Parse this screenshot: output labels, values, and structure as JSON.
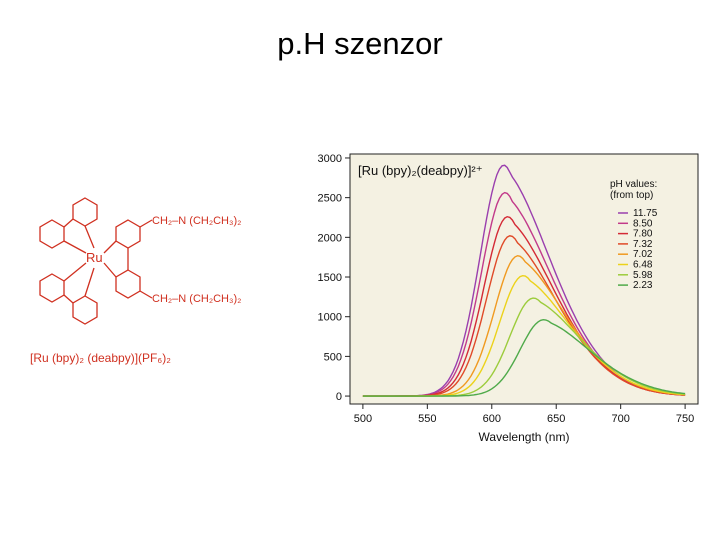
{
  "slide": {
    "title": "p.H szenzor"
  },
  "structure": {
    "central_atom": "Ru",
    "n_label": "N",
    "amine_group_top": "CH₂–N (CH₂CH₃)₂",
    "amine_group_bottom": "CH₂–N (CH₂CH₃)₂",
    "formula": "[Ru (bpy)₂ (deabpy)](PF₆)₂"
  },
  "colors": {
    "structure": "#d03020",
    "plot_bg": "#f4f1e2"
  },
  "chart_data": {
    "type": "line",
    "title": "[Ru (bpy)₂(deabpy)]²⁺",
    "xlabel": "Wavelength (nm)",
    "ylabel": "",
    "xlim": [
      490,
      760
    ],
    "ylim": [
      -100,
      3050
    ],
    "xticks": [
      500,
      550,
      600,
      650,
      700,
      750
    ],
    "yticks": [
      0,
      500,
      1000,
      1500,
      2000,
      2500,
      3000
    ],
    "legend_title_line1": "pH values:",
    "legend_title_line2": "(from top)",
    "legend_position": "top-right",
    "series": [
      {
        "name": "11.75",
        "color": "#9a3fae",
        "peak_x": 615,
        "peak_y": 2780
      },
      {
        "name": "8.50",
        "color": "#c23a8a",
        "peak_x": 616,
        "peak_y": 2450
      },
      {
        "name": "7.80",
        "color": "#d42a36",
        "peak_x": 618,
        "peak_y": 2160
      },
      {
        "name": "7.32",
        "color": "#e04a28",
        "peak_x": 620,
        "peak_y": 1930
      },
      {
        "name": "7.02",
        "color": "#f09a20",
        "peak_x": 626,
        "peak_y": 1690
      },
      {
        "name": "6.48",
        "color": "#ecd21a",
        "peak_x": 630,
        "peak_y": 1450
      },
      {
        "name": "5.98",
        "color": "#9ccc3c",
        "peak_x": 638,
        "peak_y": 1180
      },
      {
        "name": "2.23",
        "color": "#4faa4a",
        "peak_x": 646,
        "peak_y": 920
      }
    ]
  }
}
